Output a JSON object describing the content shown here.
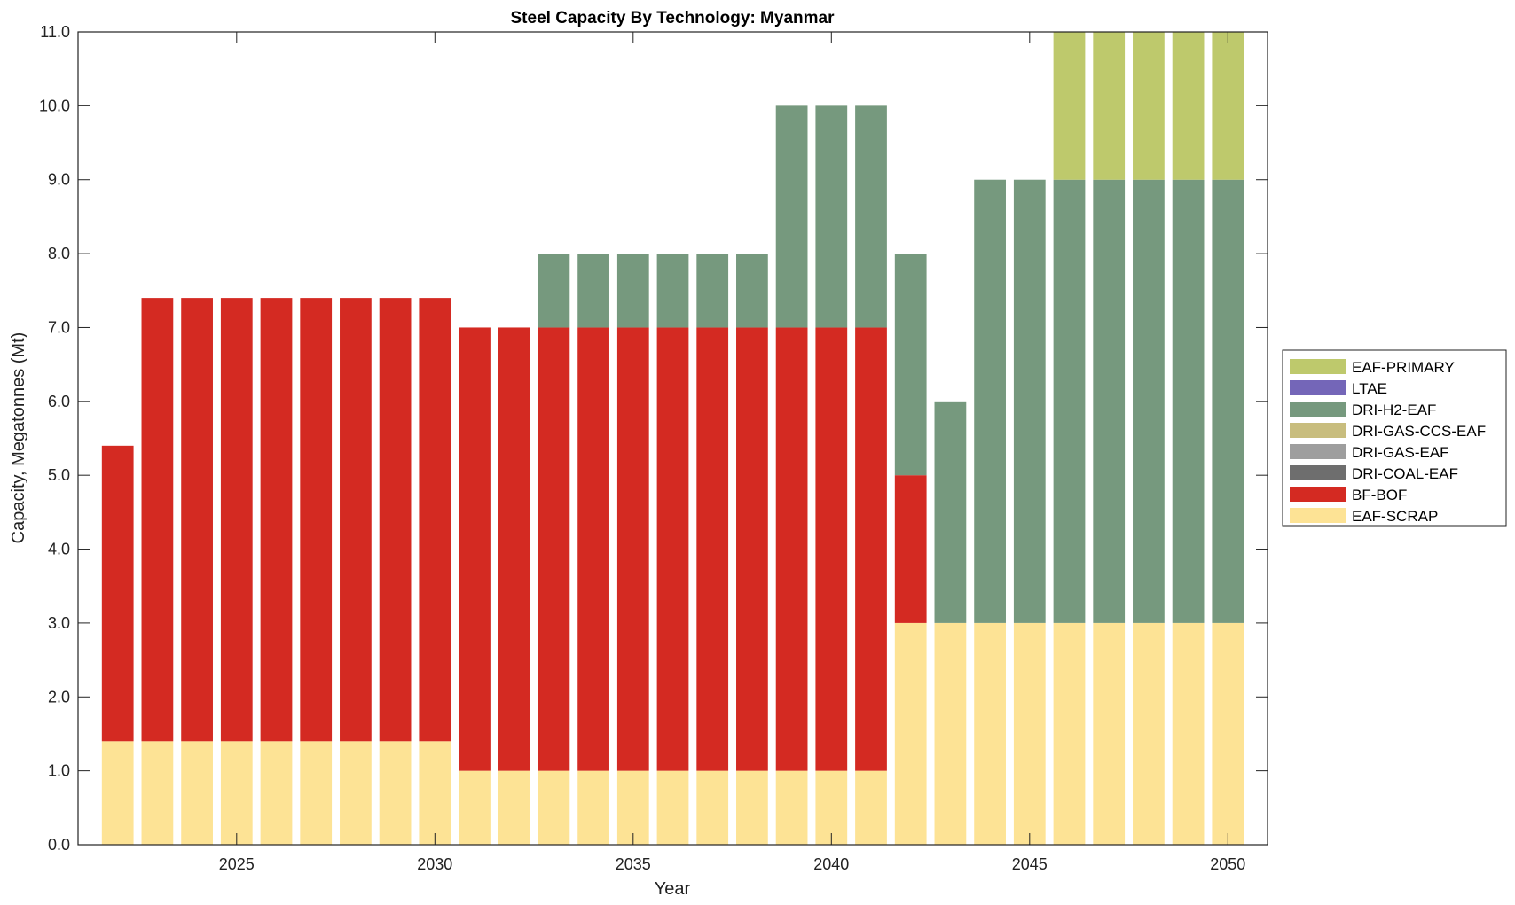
{
  "chart_data": {
    "type": "bar",
    "stacked": true,
    "title": "Steel Capacity By Technology: Myanmar",
    "xlabel": "Year",
    "ylabel": "Capacity, Megatonnes (Mt)",
    "xlim": [
      2021,
      2051
    ],
    "ylim": [
      0,
      11
    ],
    "xticks": [
      2025,
      2030,
      2035,
      2040,
      2045,
      2050
    ],
    "yticks": [
      "0.0",
      "1.0",
      "2.0",
      "3.0",
      "4.0",
      "5.0",
      "6.0",
      "7.0",
      "8.0",
      "9.0",
      "10.0",
      "11.0"
    ],
    "legend_position": "right",
    "categories": [
      2022,
      2023,
      2024,
      2025,
      2026,
      2027,
      2028,
      2029,
      2030,
      2031,
      2032,
      2033,
      2034,
      2035,
      2036,
      2037,
      2038,
      2039,
      2040,
      2041,
      2042,
      2043,
      2044,
      2045,
      2046,
      2047,
      2048,
      2049,
      2050
    ],
    "series": [
      {
        "name": "EAF-SCRAP",
        "color": "#fde395",
        "values": [
          1.4,
          1.4,
          1.4,
          1.4,
          1.4,
          1.4,
          1.4,
          1.4,
          1.4,
          1,
          1,
          1,
          1,
          1,
          1,
          1,
          1,
          1,
          1,
          1,
          3,
          3,
          3,
          3,
          3,
          3,
          3,
          3,
          3
        ]
      },
      {
        "name": "BF-BOF",
        "color": "#d42a22",
        "values": [
          4,
          6,
          6,
          6,
          6,
          6,
          6,
          6,
          6,
          6,
          6,
          6,
          6,
          6,
          6,
          6,
          6,
          6,
          6,
          6,
          2,
          0,
          0,
          0,
          0,
          0,
          0,
          0,
          0
        ]
      },
      {
        "name": "DRI-COAL-EAF",
        "color": "#6e6e6e",
        "values": [
          0,
          0,
          0,
          0,
          0,
          0,
          0,
          0,
          0,
          0,
          0,
          0,
          0,
          0,
          0,
          0,
          0,
          0,
          0,
          0,
          0,
          0,
          0,
          0,
          0,
          0,
          0,
          0,
          0
        ]
      },
      {
        "name": "DRI-GAS-EAF",
        "color": "#9e9e9e",
        "values": [
          0,
          0,
          0,
          0,
          0,
          0,
          0,
          0,
          0,
          0,
          0,
          0,
          0,
          0,
          0,
          0,
          0,
          0,
          0,
          0,
          0,
          0,
          0,
          0,
          0,
          0,
          0,
          0,
          0
        ]
      },
      {
        "name": "DRI-GAS-CCS-EAF",
        "color": "#c8bd7e",
        "values": [
          0,
          0,
          0,
          0,
          0,
          0,
          0,
          0,
          0,
          0,
          0,
          0,
          0,
          0,
          0,
          0,
          0,
          0,
          0,
          0,
          0,
          0,
          0,
          0,
          0,
          0,
          0,
          0,
          0
        ]
      },
      {
        "name": "DRI-H2-EAF",
        "color": "#76997e",
        "values": [
          0,
          0,
          0,
          0,
          0,
          0,
          0,
          0,
          0,
          0,
          0,
          1,
          1,
          1,
          1,
          1,
          1,
          3,
          3,
          3,
          3,
          3,
          6,
          6,
          6,
          6,
          6,
          6,
          6
        ]
      },
      {
        "name": "LTAE",
        "color": "#7466b8",
        "values": [
          0,
          0,
          0,
          0,
          0,
          0,
          0,
          0,
          0,
          0,
          0,
          0,
          0,
          0,
          0,
          0,
          0,
          0,
          0,
          0,
          0,
          0,
          0,
          0,
          0,
          0,
          0,
          0,
          0
        ]
      },
      {
        "name": "EAF-PRIMARY",
        "color": "#bec96c",
        "values": [
          0,
          0,
          0,
          0,
          0,
          0,
          0,
          0,
          0,
          0,
          0,
          0,
          0,
          0,
          0,
          0,
          0,
          0,
          0,
          0,
          0,
          0,
          0,
          0,
          2,
          2,
          2,
          2,
          2
        ]
      }
    ]
  }
}
